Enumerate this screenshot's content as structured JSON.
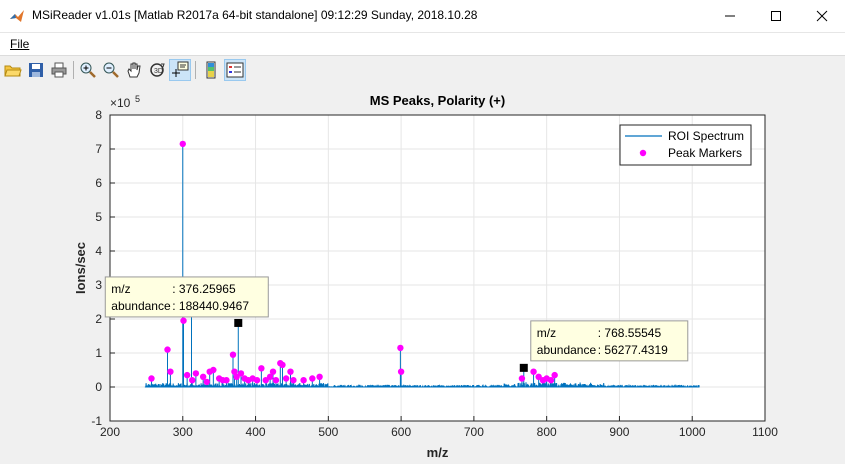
{
  "window": {
    "title": "MSiReader  v1.01s  [Matlab R2017a 64-bit standalone]  09:12:29 Sunday, 2018.10.28",
    "minimize": "—",
    "maximize": "☐",
    "close": "✕"
  },
  "menu": {
    "file": "File"
  },
  "toolbar": {
    "icons": [
      "open-folder-icon",
      "save-icon",
      "print-icon",
      "zoom-in-icon",
      "zoom-out-icon",
      "pan-hand-icon",
      "rotate-3d-icon",
      "data-cursor-icon",
      "colorbar-icon",
      "legend-icon"
    ]
  },
  "chart_data": {
    "type": "line",
    "title": "MS Peaks, Polarity (+)",
    "xlabel": "m/z",
    "ylabel": "Ions/sec",
    "y_exponent": "×10",
    "y_exponent_power": "5",
    "xlim": [
      200,
      1100
    ],
    "ylim": [
      -1,
      8
    ],
    "xticks": [
      "200",
      "300",
      "400",
      "500",
      "600",
      "700",
      "800",
      "900",
      "1000",
      "1100"
    ],
    "yticks": [
      "-1",
      "0",
      "1",
      "2",
      "3",
      "4",
      "5",
      "6",
      "7",
      "8"
    ],
    "grid": true,
    "legend_position": "top-right",
    "legend": [
      {
        "label": "ROI Spectrum",
        "kind": "line",
        "color": "#0072bd"
      },
      {
        "label": "Peak Markers",
        "kind": "marker",
        "color": "#ff00ff"
      }
    ],
    "spectrum_range": [
      248,
      1010
    ],
    "peaks": [
      {
        "x": 257,
        "y": 0.25
      },
      {
        "x": 279,
        "y": 1.1
      },
      {
        "x": 283,
        "y": 0.45
      },
      {
        "x": 300,
        "y": 7.15
      },
      {
        "x": 301,
        "y": 1.95
      },
      {
        "x": 306,
        "y": 0.35
      },
      {
        "x": 312,
        "y": 2.25
      },
      {
        "x": 313,
        "y": 0.2
      },
      {
        "x": 318,
        "y": 0.4
      },
      {
        "x": 328,
        "y": 0.3
      },
      {
        "x": 333,
        "y": 0.15
      },
      {
        "x": 337,
        "y": 0.45
      },
      {
        "x": 342,
        "y": 0.5
      },
      {
        "x": 350,
        "y": 0.25
      },
      {
        "x": 355,
        "y": 0.2
      },
      {
        "x": 360,
        "y": 0.2
      },
      {
        "x": 369,
        "y": 0.95
      },
      {
        "x": 371,
        "y": 0.45
      },
      {
        "x": 374,
        "y": 0.3
      },
      {
        "x": 376.26,
        "y": 1.884
      },
      {
        "x": 380,
        "y": 0.4
      },
      {
        "x": 385,
        "y": 0.25
      },
      {
        "x": 390,
        "y": 0.2
      },
      {
        "x": 396,
        "y": 0.25
      },
      {
        "x": 402,
        "y": 0.2
      },
      {
        "x": 408,
        "y": 0.55
      },
      {
        "x": 414,
        "y": 0.2
      },
      {
        "x": 420,
        "y": 0.3
      },
      {
        "x": 424,
        "y": 0.45
      },
      {
        "x": 428,
        "y": 0.2
      },
      {
        "x": 434,
        "y": 0.7
      },
      {
        "x": 437,
        "y": 0.65
      },
      {
        "x": 442,
        "y": 0.25
      },
      {
        "x": 448,
        "y": 0.45
      },
      {
        "x": 452,
        "y": 0.2
      },
      {
        "x": 466,
        "y": 0.2
      },
      {
        "x": 478,
        "y": 0.25
      },
      {
        "x": 488,
        "y": 0.3
      },
      {
        "x": 599,
        "y": 1.15
      },
      {
        "x": 600,
        "y": 0.45
      },
      {
        "x": 768.55,
        "y": 0.563
      },
      {
        "x": 766,
        "y": 0.25
      },
      {
        "x": 782,
        "y": 0.45
      },
      {
        "x": 789,
        "y": 0.3
      },
      {
        "x": 795,
        "y": 0.2
      },
      {
        "x": 800,
        "y": 0.25
      },
      {
        "x": 806,
        "y": 0.2
      },
      {
        "x": 811,
        "y": 0.35
      }
    ],
    "datatips": [
      {
        "x": 376.26,
        "y": 1.884,
        "label1": "m/z",
        "val1": ": 376.25965",
        "label2": "abundance",
        "val2": ": 188440.9467"
      },
      {
        "x": 768.55,
        "y": 0.563,
        "label1": "m/z",
        "val1": ": 768.55545",
        "label2": "abundance",
        "val2": ": 56277.4319"
      }
    ],
    "colors": {
      "spectrum": "#0072bd",
      "marker": "#ff00ff",
      "tip_bg": "#ffffe1",
      "axes_bg": "#ffffff",
      "figure_bg": "#f0f0f0"
    }
  }
}
